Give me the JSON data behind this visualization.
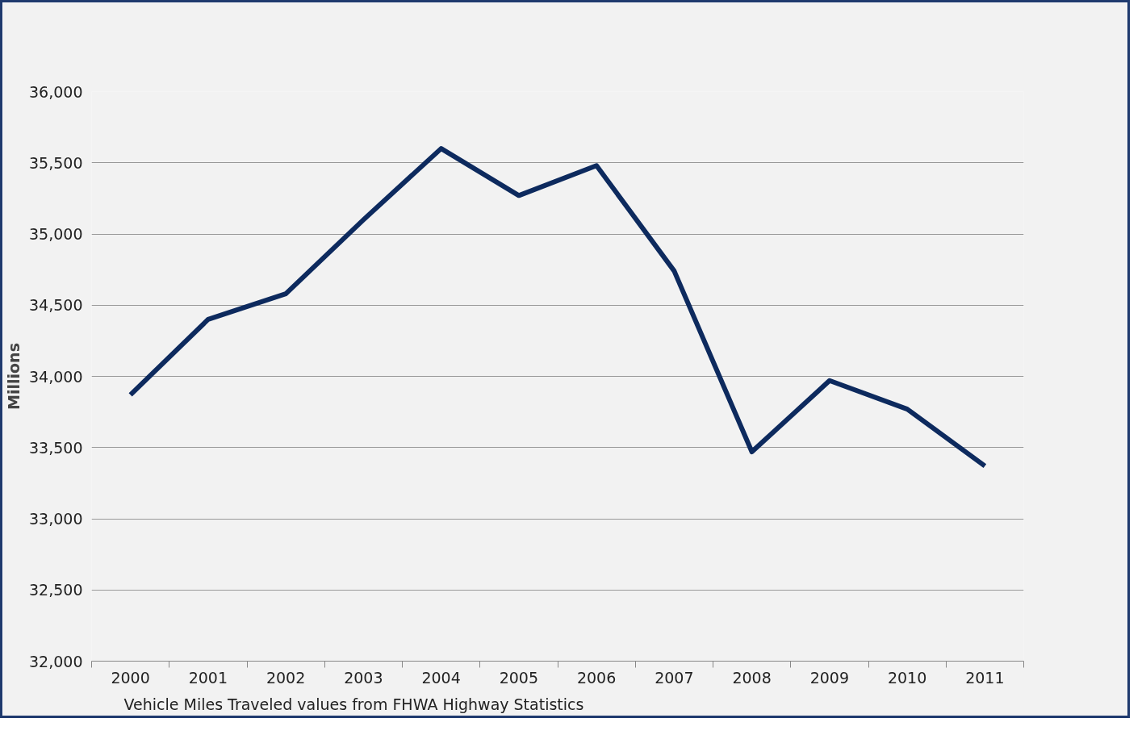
{
  "chart_data": {
    "type": "line",
    "categories": [
      "2000",
      "2001",
      "2002",
      "2003",
      "2004",
      "2005",
      "2006",
      "2007",
      "2008",
      "2009",
      "2010",
      "2011"
    ],
    "series": [
      {
        "color": "#0d2a5e",
        "values": [
          33870,
          34400,
          34580,
          35100,
          35600,
          35270,
          35480,
          34740,
          33470,
          33970,
          33770,
          33370
        ]
      }
    ],
    "ylabel": "Millions",
    "ylim": [
      32000,
      36000
    ],
    "yticks": [
      {
        "value": 32000,
        "label": "32,000"
      },
      {
        "value": 32500,
        "label": "32,500"
      },
      {
        "value": 33000,
        "label": "33,000"
      },
      {
        "value": 33500,
        "label": "33,500"
      },
      {
        "value": 34000,
        "label": "34,000"
      },
      {
        "value": 34500,
        "label": "34,500"
      },
      {
        "value": 35000,
        "label": "35,000"
      },
      {
        "value": 35500,
        "label": "35,500"
      },
      {
        "value": 36000,
        "label": "36,000"
      }
    ],
    "grid": "y",
    "annotations": [
      "Vehicle Miles Traveled values from FHWA Highway Statistics"
    ]
  }
}
